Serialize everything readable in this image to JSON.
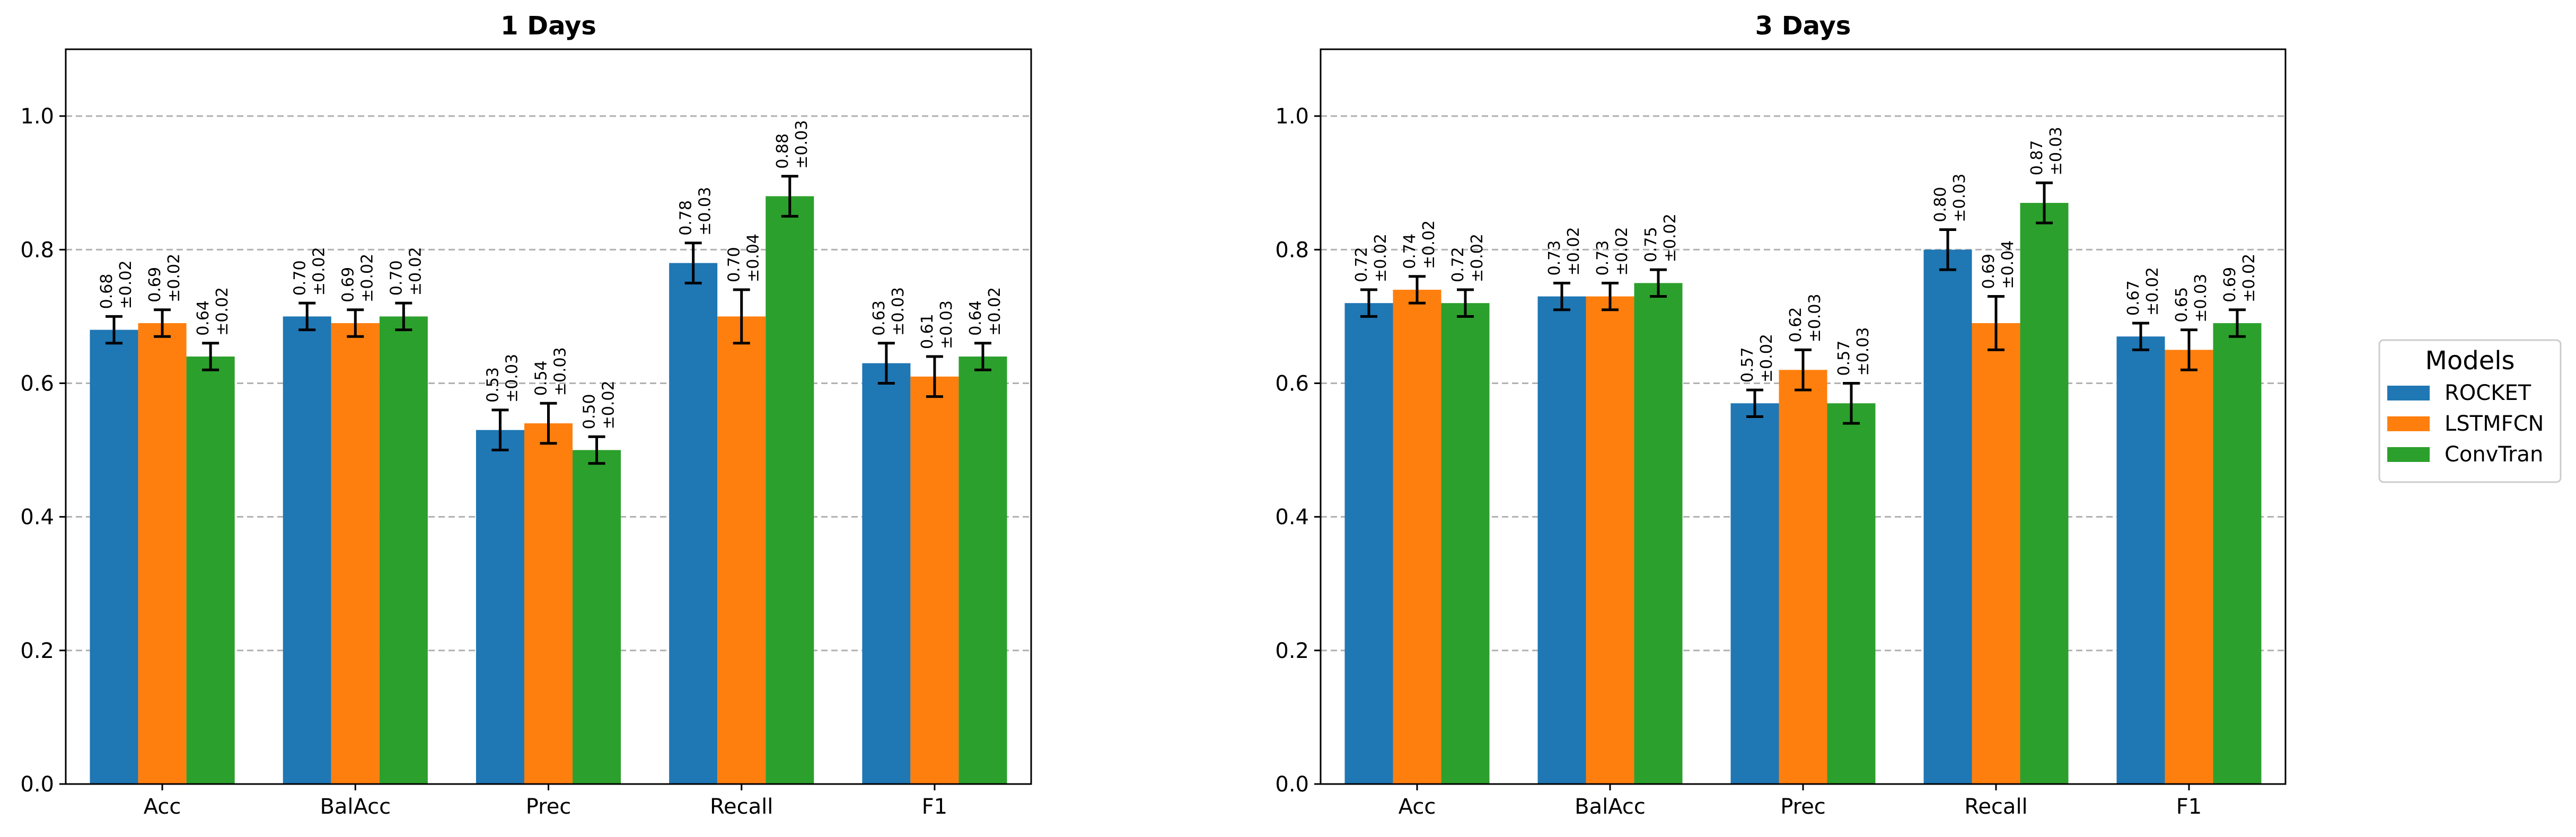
{
  "legend": {
    "title": "Models",
    "placement": "right",
    "entries": [
      "ROCKET",
      "LSTMFCN",
      "ConvTran"
    ]
  },
  "colors": {
    "ROCKET": "#1f77b4",
    "LSTMFCN": "#ff7f0e",
    "ConvTran": "#2ca02c"
  },
  "chart_data": [
    {
      "type": "bar",
      "title": "1 Days",
      "xlabel": "",
      "ylabel": "",
      "ylim": [
        0,
        1.1
      ],
      "yticks": [
        "0.0",
        "0.2",
        "0.4",
        "0.6",
        "0.8",
        "1.0"
      ],
      "grid": "y",
      "categories": [
        "Acc",
        "BalAcc",
        "Prec",
        "Recall",
        "F1"
      ],
      "series": [
        {
          "name": "ROCKET",
          "values": [
            0.68,
            0.7,
            0.53,
            0.78,
            0.63
          ],
          "errors": [
            0.02,
            0.02,
            0.03,
            0.03,
            0.03
          ],
          "labels": [
            "0.68",
            "0.70",
            "0.53",
            "0.78",
            "0.63"
          ],
          "error_labels": [
            "±0.02",
            "±0.02",
            "±0.03",
            "±0.03",
            "±0.03"
          ]
        },
        {
          "name": "LSTMFCN",
          "values": [
            0.69,
            0.69,
            0.54,
            0.7,
            0.61
          ],
          "errors": [
            0.02,
            0.02,
            0.03,
            0.04,
            0.03
          ],
          "labels": [
            "0.69",
            "0.69",
            "0.54",
            "0.70",
            "0.61"
          ],
          "error_labels": [
            "±0.02",
            "±0.02",
            "±0.03",
            "±0.04",
            "±0.03"
          ]
        },
        {
          "name": "ConvTran",
          "values": [
            0.64,
            0.7,
            0.5,
            0.88,
            0.64
          ],
          "errors": [
            0.02,
            0.02,
            0.02,
            0.03,
            0.02
          ],
          "labels": [
            "0.64",
            "0.70",
            "0.50",
            "0.88",
            "0.64"
          ],
          "error_labels": [
            "±0.02",
            "±0.02",
            "±0.02",
            "±0.03",
            "±0.02"
          ]
        }
      ]
    },
    {
      "type": "bar",
      "title": "3 Days",
      "xlabel": "",
      "ylabel": "",
      "ylim": [
        0,
        1.1
      ],
      "yticks": [
        "0.0",
        "0.2",
        "0.4",
        "0.6",
        "0.8",
        "1.0"
      ],
      "grid": "y",
      "categories": [
        "Acc",
        "BalAcc",
        "Prec",
        "Recall",
        "F1"
      ],
      "series": [
        {
          "name": "ROCKET",
          "values": [
            0.72,
            0.73,
            0.57,
            0.8,
            0.67
          ],
          "errors": [
            0.02,
            0.02,
            0.02,
            0.03,
            0.02
          ],
          "labels": [
            "0.72",
            "0.73",
            "0.57",
            "0.80",
            "0.67"
          ],
          "error_labels": [
            "±0.02",
            "±0.02",
            "±0.02",
            "±0.03",
            "±0.02"
          ]
        },
        {
          "name": "LSTMFCN",
          "values": [
            0.74,
            0.73,
            0.62,
            0.69,
            0.65
          ],
          "errors": [
            0.02,
            0.02,
            0.03,
            0.04,
            0.03
          ],
          "labels": [
            "0.74",
            "0.73",
            "0.62",
            "0.69",
            "0.65"
          ],
          "error_labels": [
            "±0.02",
            "±0.02",
            "±0.03",
            "±0.04",
            "±0.03"
          ]
        },
        {
          "name": "ConvTran",
          "values": [
            0.72,
            0.75,
            0.57,
            0.87,
            0.69
          ],
          "errors": [
            0.02,
            0.02,
            0.03,
            0.03,
            0.02
          ],
          "labels": [
            "0.72",
            "0.75",
            "0.57",
            "0.87",
            "0.69"
          ],
          "error_labels": [
            "±0.02",
            "±0.02",
            "±0.03",
            "±0.03",
            "±0.02"
          ]
        }
      ]
    }
  ]
}
